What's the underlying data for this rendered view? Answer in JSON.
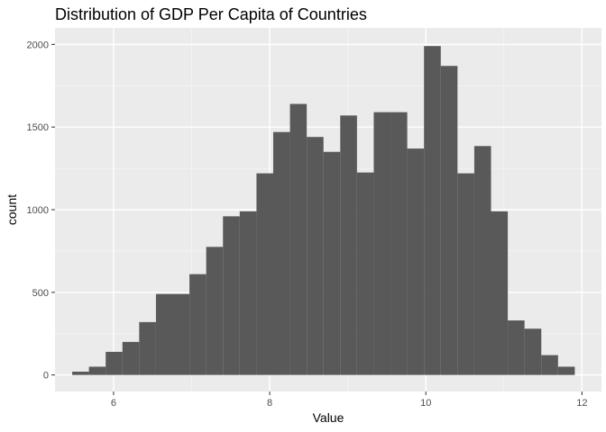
{
  "chart_data": {
    "type": "bar",
    "title": "Distribution of GDP Per Capita of Countries",
    "xlabel": "Value",
    "ylabel": "count",
    "xlim": [
      5.25,
      12.25
    ],
    "ylim": [
      -100,
      2100
    ],
    "x_ticks": [
      6,
      8,
      10,
      12
    ],
    "x_tick_labels": [
      "6",
      "8",
      "10",
      "12"
    ],
    "y_ticks": [
      0,
      500,
      1000,
      1500,
      2000
    ],
    "y_tick_labels": [
      "0",
      "500",
      "1000",
      "1500",
      "2000"
    ],
    "grid": true,
    "bin_width": 0.2146,
    "bins_start": 5.47,
    "values": [
      20,
      50,
      140,
      200,
      320,
      490,
      490,
      610,
      775,
      960,
      990,
      1220,
      1470,
      1640,
      1440,
      1350,
      1570,
      1225,
      1590,
      1590,
      1370,
      1990,
      1870,
      1220,
      1385,
      990,
      330,
      280,
      120,
      50
    ],
    "colors": {
      "panel_background": "#ebebeb",
      "grid_major": "#ffffff",
      "grid_minor": "#f5f5f5",
      "bar_fill": "#595959",
      "tick_text": "#4d4d4d",
      "tick_mark": "#333333"
    }
  }
}
